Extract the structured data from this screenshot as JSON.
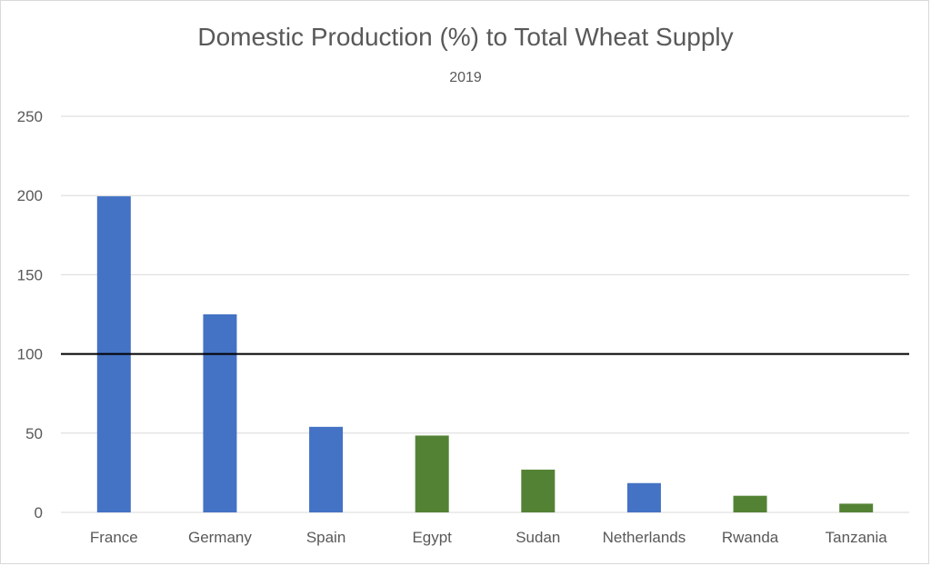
{
  "chart_data": {
    "type": "bar",
    "title": "Domestic Production (%) to Total Wheat Supply",
    "subtitle": "2019",
    "xlabel": "",
    "ylabel": "",
    "ylim": [
      0,
      250
    ],
    "yticks": [
      0,
      50,
      100,
      150,
      200,
      250
    ],
    "grid": true,
    "legend": "none",
    "categories": [
      "France",
      "Germany",
      "Spain",
      "Egypt",
      "Sudan",
      "Netherlands",
      "Rwanda",
      "Tanzania"
    ],
    "values": [
      199.5,
      125,
      54,
      48.5,
      27,
      18.5,
      10.5,
      5.5
    ],
    "bar_colors": [
      "#4472C4",
      "#4472C4",
      "#4472C4",
      "#548235",
      "#548235",
      "#4472C4",
      "#548235",
      "#548235"
    ],
    "reference_line": {
      "value": 100,
      "color": "#000000"
    }
  }
}
